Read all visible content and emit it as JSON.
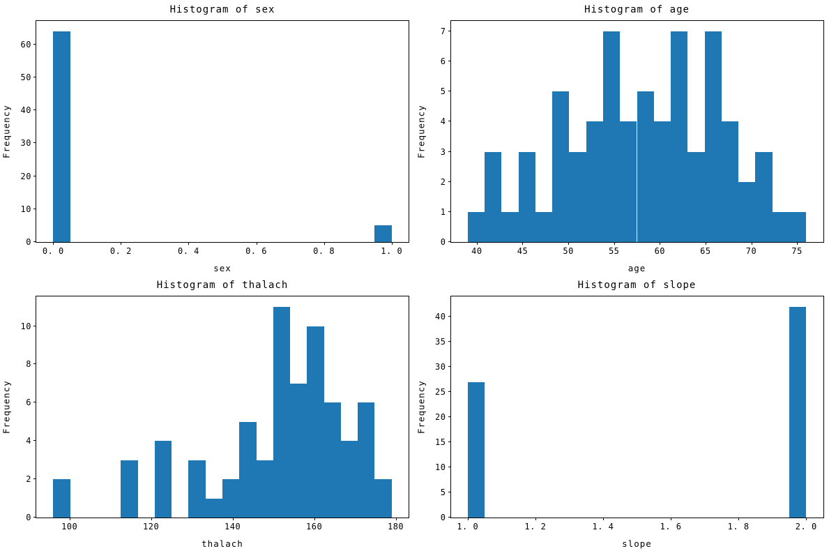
{
  "figure": {
    "background_color": "#ffffff",
    "bar_color": "#1f77b4",
    "axis_color": "#000000",
    "total_samples_per_plot": 69
  },
  "chart_data": [
    {
      "type": "bar",
      "subtype": "histogram",
      "title": "Histogram of sex",
      "xlabel": "sex",
      "ylabel": "Frequency",
      "bins": {
        "start": 0.0,
        "width": 0.05,
        "count": 20
      },
      "values": [
        64,
        0,
        0,
        0,
        0,
        0,
        0,
        0,
        0,
        0,
        0,
        0,
        0,
        0,
        0,
        0,
        0,
        0,
        0,
        5
      ],
      "nonzero_summary": [
        {
          "range": "0.00-0.05",
          "frequency": 64
        },
        {
          "range": "0.95-1.00",
          "frequency": 5
        }
      ],
      "xlim": [
        -0.05,
        1.05
      ],
      "ylim": [
        0,
        67.2
      ],
      "xticks": {
        "values": [
          0.0,
          0.2,
          0.4,
          0.6,
          0.8,
          1.0
        ],
        "labels": [
          "0. 0",
          "0. 2",
          "0. 4",
          "0. 6",
          "0. 8",
          "1. 0"
        ]
      },
      "yticks": {
        "values": [
          0,
          10,
          20,
          30,
          40,
          50,
          60
        ],
        "labels": [
          "0",
          "10",
          "20",
          "30",
          "40",
          "50",
          "60"
        ]
      },
      "grid": false,
      "legend": null
    },
    {
      "type": "bar",
      "subtype": "histogram",
      "title": "Histogram of age",
      "xlabel": "age",
      "ylabel": "Frequency",
      "bins": {
        "start": 39.0,
        "width": 1.85,
        "count": 20
      },
      "values": [
        1,
        3,
        1,
        3,
        1,
        5,
        3,
        4,
        7,
        4,
        5,
        4,
        7,
        3,
        7,
        4,
        2,
        3,
        1,
        1
      ],
      "xlim": [
        37.15,
        77.85
      ],
      "ylim": [
        0,
        7.35
      ],
      "xticks": {
        "values": [
          40,
          45,
          50,
          55,
          60,
          65,
          70,
          75
        ],
        "labels": [
          "40",
          "45",
          "50",
          "55",
          "60",
          "65",
          "70",
          "75"
        ]
      },
      "yticks": {
        "values": [
          0,
          1,
          2,
          3,
          4,
          5,
          6,
          7
        ],
        "labels": [
          "0",
          "1",
          "2",
          "3",
          "4",
          "5",
          "6",
          "7"
        ]
      },
      "grid": false,
      "legend": null
    },
    {
      "type": "bar",
      "subtype": "histogram",
      "title": "Histogram of thalach",
      "xlabel": "thalach",
      "ylabel": "Frequency",
      "bins": {
        "start": 96.0,
        "width": 4.15,
        "count": 20
      },
      "values": [
        2,
        0,
        0,
        0,
        3,
        0,
        4,
        0,
        3,
        1,
        2,
        5,
        3,
        11,
        7,
        10,
        6,
        4,
        6,
        2
      ],
      "xlim": [
        91.85,
        183.15
      ],
      "ylim": [
        0,
        11.55
      ],
      "xticks": {
        "values": [
          100,
          120,
          140,
          160,
          180
        ],
        "labels": [
          "100",
          "120",
          "140",
          "160",
          "180"
        ]
      },
      "yticks": {
        "values": [
          0,
          2,
          4,
          6,
          8,
          10
        ],
        "labels": [
          "0",
          "2",
          "4",
          "6",
          "8",
          "10"
        ]
      },
      "grid": false,
      "legend": null
    },
    {
      "type": "bar",
      "subtype": "histogram",
      "title": "Histogram of slope",
      "xlabel": "slope",
      "ylabel": "Frequency",
      "bins": {
        "start": 1.0,
        "width": 0.05,
        "count": 20
      },
      "values": [
        27,
        0,
        0,
        0,
        0,
        0,
        0,
        0,
        0,
        0,
        0,
        0,
        0,
        0,
        0,
        0,
        0,
        0,
        0,
        42
      ],
      "nonzero_summary": [
        {
          "range": "1.00-1.05",
          "frequency": 27
        },
        {
          "range": "1.95-2.00",
          "frequency": 42
        }
      ],
      "xlim": [
        0.95,
        2.05
      ],
      "ylim": [
        0,
        44.1
      ],
      "xticks": {
        "values": [
          1.0,
          1.2,
          1.4,
          1.6,
          1.8,
          2.0
        ],
        "labels": [
          "1. 0",
          "1. 2",
          "1. 4",
          "1. 6",
          "1. 8",
          "2. 0"
        ]
      },
      "yticks": {
        "values": [
          0,
          5,
          10,
          15,
          20,
          25,
          30,
          35,
          40
        ],
        "labels": [
          "0",
          "5",
          "10",
          "15",
          "20",
          "25",
          "30",
          "35",
          "40"
        ]
      },
      "grid": false,
      "legend": null
    }
  ]
}
